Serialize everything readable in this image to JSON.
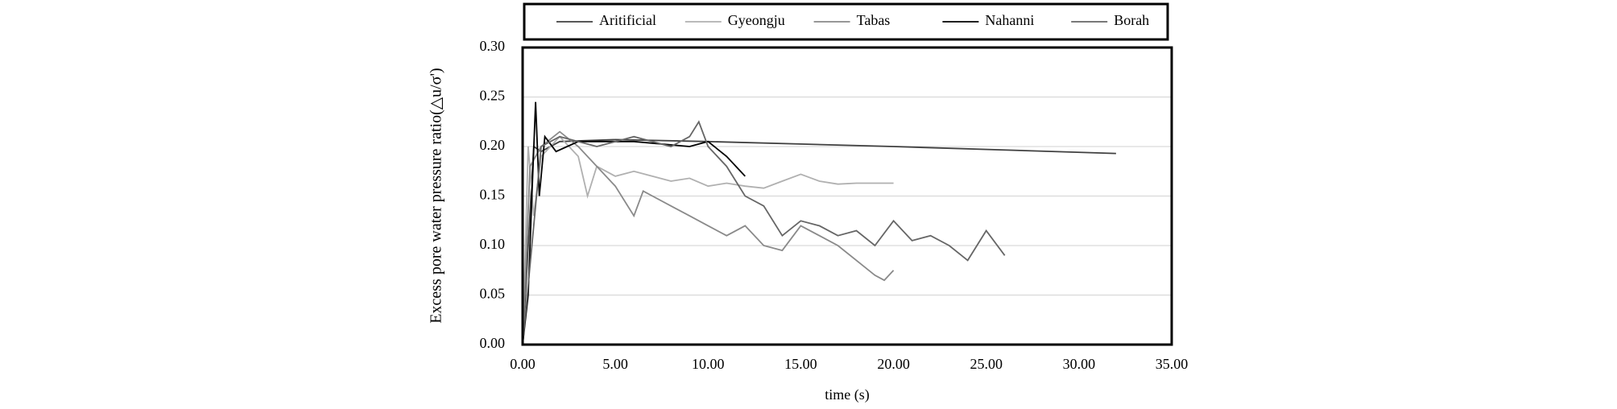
{
  "chart_data": {
    "type": "line",
    "x_label": "time (s)",
    "y_label": "Excess pore water pressure ratio(△u/σ')",
    "xlim": [
      0,
      35
    ],
    "xticks": [
      {
        "value": 0,
        "label": "0.00"
      },
      {
        "value": 5,
        "label": "5.00"
      },
      {
        "value": 10,
        "label": "10.00"
      },
      {
        "value": 15,
        "label": "15.00"
      },
      {
        "value": 20,
        "label": "20.00"
      },
      {
        "value": 25,
        "label": "25.00"
      },
      {
        "value": 30,
        "label": "30.00"
      },
      {
        "value": 35,
        "label": "35.00"
      }
    ],
    "ylim": [
      0,
      0.3
    ],
    "yticks": [
      {
        "value": 0,
        "label": "0.00"
      },
      {
        "value": 0.05,
        "label": "0.05"
      },
      {
        "value": 0.1,
        "label": "0.10"
      },
      {
        "value": 0.15,
        "label": "0.15"
      },
      {
        "value": 0.2,
        "label": "0.20"
      },
      {
        "value": 0.25,
        "label": "0.25"
      },
      {
        "value": 0.3,
        "label": "0.30"
      }
    ],
    "grid": true,
    "legend": "top",
    "series": [
      {
        "name": "Aritificial",
        "color": "#404040",
        "x": [
          0,
          0.3,
          0.6,
          1,
          2,
          5,
          10,
          20,
          32
        ],
        "values": [
          0,
          0.1,
          0.2,
          0.195,
          0.205,
          0.207,
          0.205,
          0.2,
          0.193
        ]
      },
      {
        "name": "Gyeongju",
        "color": "#b0b0b0",
        "x": [
          0,
          0.3,
          0.6,
          1,
          2,
          3,
          3.5,
          4,
          5,
          6,
          7,
          8,
          9,
          10,
          11,
          12,
          13,
          14,
          15,
          16,
          17,
          18,
          19,
          20
        ],
        "values": [
          0,
          0.2,
          0.13,
          0.19,
          0.21,
          0.19,
          0.15,
          0.18,
          0.17,
          0.175,
          0.17,
          0.165,
          0.168,
          0.16,
          0.163,
          0.16,
          0.158,
          0.165,
          0.172,
          0.165,
          0.162,
          0.163,
          0.163,
          0.163
        ]
      },
      {
        "name": "Tabas",
        "color": "#8a8a8a",
        "x": [
          0,
          0.4,
          1,
          2,
          3,
          4,
          5,
          6,
          6.5,
          7,
          8,
          9,
          10,
          11,
          12,
          13,
          14,
          15,
          16,
          17,
          18,
          19,
          19.5,
          20
        ],
        "values": [
          0,
          0.18,
          0.2,
          0.215,
          0.2,
          0.18,
          0.16,
          0.13,
          0.155,
          0.15,
          0.14,
          0.13,
          0.12,
          0.11,
          0.12,
          0.1,
          0.095,
          0.12,
          0.11,
          0.1,
          0.085,
          0.07,
          0.065,
          0.075
        ]
      },
      {
        "name": "Nahanni",
        "color": "#000000",
        "x": [
          0,
          0.3,
          0.5,
          0.7,
          0.9,
          1.2,
          1.8,
          3,
          6,
          9,
          10,
          11,
          12
        ],
        "values": [
          0,
          0.05,
          0.15,
          0.245,
          0.15,
          0.21,
          0.195,
          0.205,
          0.205,
          0.2,
          0.205,
          0.19,
          0.17
        ]
      },
      {
        "name": "Borah",
        "color": "#666666",
        "x": [
          0,
          0.5,
          1,
          2,
          4,
          6,
          8,
          9,
          9.5,
          10,
          11,
          12,
          13,
          14,
          15,
          16,
          17,
          18,
          19,
          20,
          21,
          22,
          23,
          24,
          25,
          26
        ],
        "values": [
          0,
          0.1,
          0.2,
          0.21,
          0.2,
          0.21,
          0.2,
          0.21,
          0.225,
          0.2,
          0.18,
          0.15,
          0.14,
          0.11,
          0.125,
          0.12,
          0.11,
          0.115,
          0.1,
          0.125,
          0.105,
          0.11,
          0.1,
          0.085,
          0.115,
          0.09
        ]
      }
    ]
  }
}
